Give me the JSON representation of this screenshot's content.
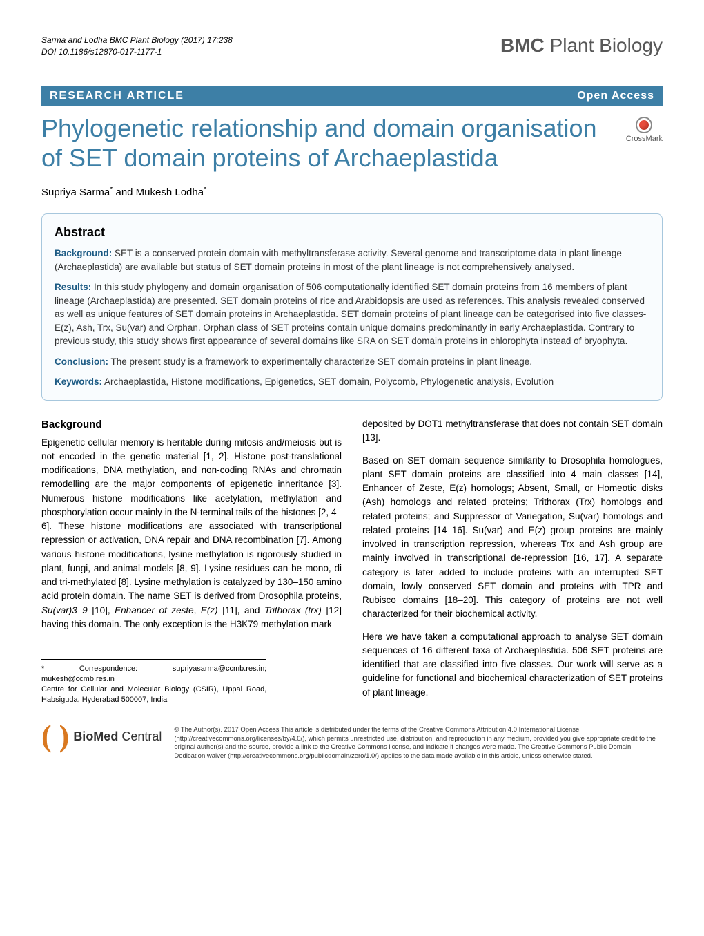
{
  "citation": {
    "authors_line": "Sarma and Lodha BMC Plant Biology  (2017) 17:238",
    "doi_line": "DOI 10.1186/s12870-017-1177-1"
  },
  "journal": {
    "name_bold": "BMC",
    "name_regular": " Plant Biology"
  },
  "article_type_bar": {
    "type": "RESEARCH ARTICLE",
    "access": "Open Access"
  },
  "crossmark_label": "CrossMark",
  "title": "Phylogenetic relationship and domain organisation of SET domain proteins of Archaeplastida",
  "authors_html": "Supriya Sarma* and Mukesh Lodha*",
  "abstract": {
    "heading": "Abstract",
    "background": {
      "label": "Background:",
      "text": " SET is a conserved protein domain with methyltransferase activity. Several genome and transcriptome data in plant lineage (Archaeplastida) are available but status of SET domain proteins in most of the plant lineage is not comprehensively analysed."
    },
    "results": {
      "label": "Results:",
      "text": " In this study phylogeny and domain organisation of 506 computationally identified SET domain proteins from 16 members of plant lineage (Archaeplastida) are presented. SET domain proteins of rice and Arabidopsis are used as references. This analysis revealed conserved as well as unique features of SET domain proteins in Archaeplastida. SET domain proteins of plant lineage can be categorised into five classes- E(z), Ash, Trx, Su(var) and Orphan. Orphan class of SET proteins contain unique domains predominantly in early Archaeplastida. Contrary to previous study, this study shows first appearance of several domains like SRA on SET domain proteins in chlorophyta instead of bryophyta."
    },
    "conclusion": {
      "label": "Conclusion:",
      "text": " The present study is a framework to experimentally characterize SET domain proteins in plant lineage."
    },
    "keywords": {
      "label": "Keywords:",
      "text": " Archaeplastida, Histone modifications, Epigenetics, SET domain, Polycomb, Phylogenetic analysis, Evolution"
    }
  },
  "background_section": {
    "heading": "Background",
    "p1": "Epigenetic cellular memory is heritable during mitosis and/meiosis but is not encoded in the genetic material [1, 2]. Histone post-translational modifications, DNA methylation, and non-coding RNAs and chromatin remodelling are the major components of epigenetic inheritance [3]. Numerous histone modifications like acetylation, methylation and phosphorylation occur mainly in the N-terminal tails of the histones [2, 4–6]. These histone modifications are associated with transcriptional repression or activation, DNA repair and DNA recombination [7]. Among various histone modifications, lysine methylation is rigorously studied in plant, fungi, and animal models [8, 9]. Lysine residues can be mono, di and tri-methylated [8]. Lysine methylation is catalyzed by 130–150 amino acid protein domain. The name SET is derived from Drosophila proteins, Su(var)3–9 [10], Enhancer of zeste, E(z) [11], and Trithorax (trx) [12] having this domain. The only exception is the H3K79 methylation mark",
    "p2_top": "deposited by DOT1 methyltransferase that does not contain SET domain [13].",
    "p3": "Based on SET domain sequence similarity to Drosophila homologues, plant SET domain proteins are classified into 4 main classes [14], Enhancer of Zeste, E(z) homologs; Absent, Small, or Homeotic disks (Ash) homologs and related proteins; Trithorax (Trx) homologs and related proteins; and Suppressor of Variegation, Su(var) homologs and related proteins [14–16]. Su(var) and E(z) group proteins are mainly involved in transcription repression, whereas Trx and Ash group are mainly involved in transcriptional de-repression [16, 17]. A separate category is later added to include proteins with an interrupted SET domain, lowly conserved SET domain and proteins with TPR and Rubisco domains [18–20]. This category of proteins are not well characterized for their biochemical activity.",
    "p4": "Here we have taken a computational approach to analyse SET domain sequences of 16 different taxa of Archaeplastida. 506 SET proteins are identified that are classified into five classes. Our work will serve as a guideline for functional and biochemical characterization of SET proteins of plant lineage."
  },
  "correspondence": {
    "line1": "* Correspondence: supriyasarma@ccmb.res.in; mukesh@ccmb.res.in",
    "line2": "Centre for Cellular and Molecular Biology (CSIR), Uppal Road, Habsiguda, Hyderabad 500007, India"
  },
  "footer": {
    "logo_bold": "BioMed",
    "logo_regular": " Central",
    "license": "© The Author(s). 2017 Open Access This article is distributed under the terms of the Creative Commons Attribution 4.0 International License (http://creativecommons.org/licenses/by/4.0/), which permits unrestricted use, distribution, and reproduction in any medium, provided you give appropriate credit to the original author(s) and the source, provide a link to the Creative Commons license, and indicate if changes were made. The Creative Commons Public Domain Dedication waiver (http://creativecommons.org/publicdomain/zero/1.0/) applies to the data made available in this article, unless otherwise stated."
  }
}
